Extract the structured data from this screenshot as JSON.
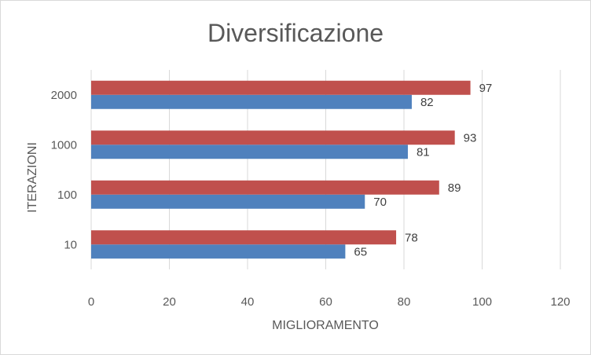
{
  "chart_data": {
    "type": "bar",
    "orientation": "horizontal",
    "title": "Diversificazione",
    "xlabel": "MIGLIORAMENTO",
    "ylabel": "ITERAZIONI",
    "categories": [
      "10",
      "100",
      "1000",
      "2000"
    ],
    "series": [
      {
        "values": [
          65,
          70,
          81,
          82
        ],
        "color": "#4f81bd"
      },
      {
        "values": [
          78,
          89,
          93,
          97
        ],
        "color": "#c0504d"
      }
    ],
    "xlim": [
      0,
      120
    ],
    "x_ticks": [
      0,
      20,
      40,
      60,
      80,
      100,
      120
    ],
    "grid": "vertical",
    "legend": "none",
    "data_labels": true
  }
}
